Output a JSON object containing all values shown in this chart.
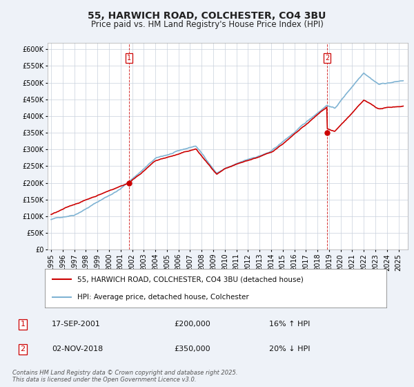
{
  "title": "55, HARWICH ROAD, COLCHESTER, CO4 3BU",
  "subtitle": "Price paid vs. HM Land Registry's House Price Index (HPI)",
  "ylim": [
    0,
    620000
  ],
  "yticks": [
    0,
    50000,
    100000,
    150000,
    200000,
    250000,
    300000,
    350000,
    400000,
    450000,
    500000,
    550000,
    600000
  ],
  "ytick_labels": [
    "£0",
    "£50K",
    "£100K",
    "£150K",
    "£200K",
    "£250K",
    "£300K",
    "£350K",
    "£400K",
    "£450K",
    "£500K",
    "£550K",
    "£600K"
  ],
  "hpi_color": "#7fb3d3",
  "price_color": "#cc0000",
  "annotation1": {
    "label": "1",
    "date": "17-SEP-2001",
    "price": "£200,000",
    "hpi": "16% ↑ HPI"
  },
  "annotation2": {
    "label": "2",
    "date": "02-NOV-2018",
    "price": "£350,000",
    "hpi": "20% ↓ HPI"
  },
  "legend_line1": "55, HARWICH ROAD, COLCHESTER, CO4 3BU (detached house)",
  "legend_line2": "HPI: Average price, detached house, Colchester",
  "footnote": "Contains HM Land Registry data © Crown copyright and database right 2025.\nThis data is licensed under the Open Government Licence v3.0.",
  "background_color": "#eef2f8",
  "plot_bg_color": "#ffffff",
  "grid_color": "#c8d0dc",
  "title_fontsize": 10,
  "subtitle_fontsize": 8.5,
  "tick_fontsize": 7,
  "legend_fontsize": 7.5,
  "ann_fontsize": 8,
  "footnote_fontsize": 6
}
